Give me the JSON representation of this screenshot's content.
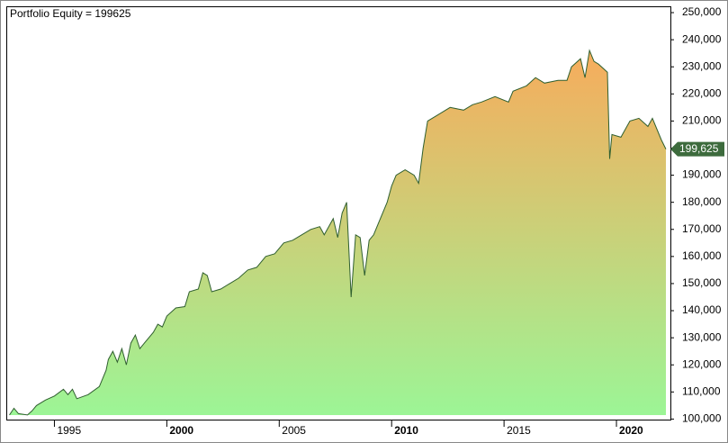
{
  "chart_data": {
    "type": "area",
    "title": "Portfolio Equity = 199625",
    "x": [
      1993.0,
      1993.2,
      1993.4,
      1993.8,
      1994.0,
      1994.2,
      1994.6,
      1995.0,
      1995.4,
      1995.6,
      1995.8,
      1996.0,
      1996.5,
      1997.0,
      1997.3,
      1997.4,
      1997.6,
      1997.8,
      1998.0,
      1998.2,
      1998.4,
      1998.6,
      1998.8,
      1999.0,
      1999.4,
      1999.6,
      1999.8,
      2000.0,
      2000.4,
      2000.8,
      2001.0,
      2001.4,
      2001.6,
      2001.8,
      2002.0,
      2002.4,
      2002.8,
      2003.2,
      2003.6,
      2004.0,
      2004.4,
      2004.8,
      2005.2,
      2005.6,
      2006.0,
      2006.4,
      2006.8,
      2007.0,
      2007.4,
      2007.6,
      2007.8,
      2008.0,
      2008.2,
      2008.4,
      2008.6,
      2008.8,
      2009.0,
      2009.2,
      2009.4,
      2009.6,
      2009.8,
      2010.0,
      2010.2,
      2010.6,
      2011.0,
      2011.2,
      2011.4,
      2011.6,
      2012.0,
      2012.6,
      2013.2,
      2013.6,
      2014.0,
      2014.6,
      2015.2,
      2015.4,
      2016.0,
      2016.4,
      2016.8,
      2017.4,
      2017.8,
      2018.0,
      2018.4,
      2018.6,
      2018.8,
      2019.0,
      2019.2,
      2019.6,
      2019.7,
      2019.8,
      2020.2,
      2020.6,
      2021.0,
      2021.4,
      2021.6,
      2022.0,
      2022.2
    ],
    "values": [
      101500,
      104000,
      102000,
      101500,
      103000,
      105000,
      107000,
      108500,
      111000,
      109000,
      111000,
      107500,
      109000,
      112000,
      118000,
      122000,
      125000,
      121000,
      126000,
      120000,
      128000,
      131000,
      126000,
      128000,
      132000,
      135000,
      134000,
      138000,
      141000,
      141500,
      147000,
      148000,
      154000,
      153000,
      147000,
      148000,
      150000,
      152000,
      155000,
      156000,
      160000,
      161000,
      165000,
      166000,
      168000,
      170000,
      171000,
      168000,
      174000,
      167000,
      176000,
      180000,
      145000,
      168000,
      167000,
      153000,
      166000,
      168000,
      172000,
      176000,
      180000,
      186000,
      190000,
      192000,
      190000,
      187000,
      200000,
      210000,
      212000,
      215000,
      214000,
      216000,
      217000,
      219000,
      217000,
      221000,
      223000,
      226000,
      224000,
      225000,
      225000,
      230000,
      233000,
      226000,
      236000,
      232000,
      231000,
      228000,
      196000,
      205000,
      204000,
      210000,
      211000,
      208000,
      211000,
      203000,
      199625
    ],
    "xlim": [
      1992.9,
      2022.4
    ],
    "xticks": [
      1995,
      2000,
      2005,
      2010,
      2015,
      2020
    ],
    "ylim": [
      99800,
      252000
    ],
    "yticks": [
      {
        "value": 100000,
        "label": "100,000"
      },
      {
        "value": 110000,
        "label": "110,000"
      },
      {
        "value": 120000,
        "label": "120,000"
      },
      {
        "value": 130000,
        "label": "130,000"
      },
      {
        "value": 140000,
        "label": "140,000"
      },
      {
        "value": 150000,
        "label": "150,000"
      },
      {
        "value": 160000,
        "label": "160,000"
      },
      {
        "value": 170000,
        "label": "170,000"
      },
      {
        "value": 180000,
        "label": "180,000"
      },
      {
        "value": 190000,
        "label": "190,000"
      },
      {
        "value": 200000,
        "label": "200,000"
      },
      {
        "value": 210000,
        "label": "210,000"
      },
      {
        "value": 220000,
        "label": "220,000"
      },
      {
        "value": 230000,
        "label": "230,000"
      },
      {
        "value": 240000,
        "label": "240,000"
      },
      {
        "value": 250000,
        "label": "250,000"
      }
    ],
    "last_label": {
      "value": 199625,
      "label": "199,625"
    },
    "line_color": "#2f5f2f",
    "gradient": [
      "#f7ac5c",
      "#9cf596"
    ],
    "marker_color": "#3d6b3d"
  }
}
